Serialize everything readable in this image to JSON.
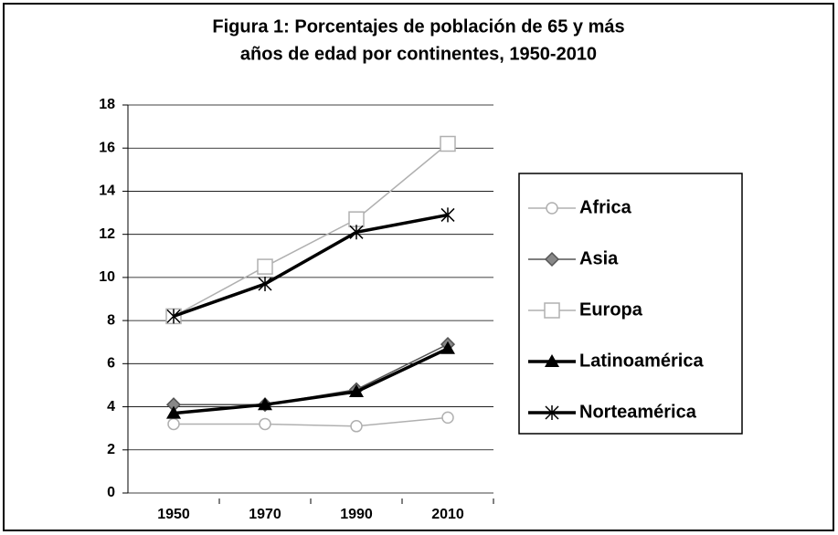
{
  "chart_data": {
    "type": "line",
    "title": [
      "Figura 1: Porcentajes de población de 65 y más",
      "años de edad por continentes, 1950-2010"
    ],
    "categories": [
      "1950",
      "1970",
      "1990",
      "2010"
    ],
    "series": [
      {
        "name": "Africa",
        "color": "#b0b0b0",
        "marker": "circle",
        "values": [
          3.2,
          3.2,
          3.1,
          3.5
        ]
      },
      {
        "name": "Asia",
        "color": "#555555",
        "marker": "diamond",
        "values": [
          4.1,
          4.1,
          4.8,
          6.9
        ]
      },
      {
        "name": "Europa",
        "color": "#b0b0b0",
        "marker": "square",
        "values": [
          8.2,
          10.5,
          12.7,
          16.2
        ]
      },
      {
        "name": "Latinoamérica",
        "color": "#000000",
        "marker": "triangle",
        "values": [
          3.7,
          4.1,
          4.7,
          6.7
        ]
      },
      {
        "name": "Norteamérica",
        "color": "#000000",
        "marker": "x",
        "values": [
          8.2,
          9.7,
          12.1,
          12.9
        ]
      }
    ],
    "ylim": [
      0,
      18
    ],
    "yticks": [
      0,
      2,
      4,
      6,
      8,
      10,
      12,
      14,
      16,
      18
    ],
    "grid": true,
    "legend": "right"
  }
}
